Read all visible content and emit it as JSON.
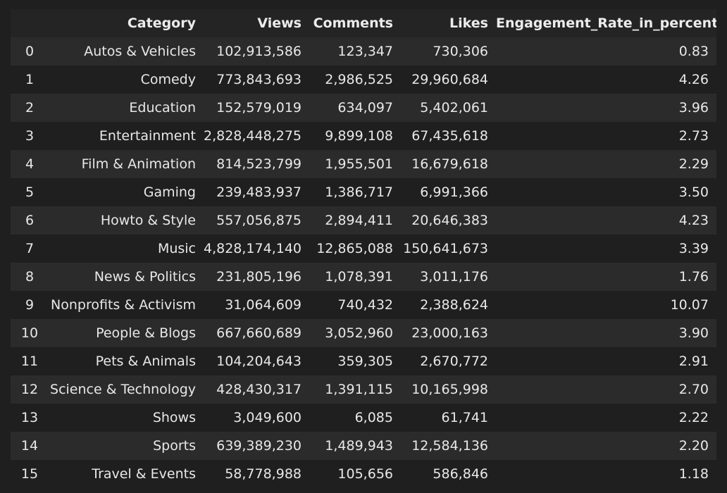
{
  "table": {
    "columns": [
      "",
      "Category",
      "Views",
      "Comments",
      "Likes",
      "Engagement_Rate_in_percent"
    ],
    "rows": [
      [
        "0",
        "Autos & Vehicles",
        "102,913,586",
        "123,347",
        "730,306",
        "0.83"
      ],
      [
        "1",
        "Comedy",
        "773,843,693",
        "2,986,525",
        "29,960,684",
        "4.26"
      ],
      [
        "2",
        "Education",
        "152,579,019",
        "634,097",
        "5,402,061",
        "3.96"
      ],
      [
        "3",
        "Entertainment",
        "2,828,448,275",
        "9,899,108",
        "67,435,618",
        "2.73"
      ],
      [
        "4",
        "Film & Animation",
        "814,523,799",
        "1,955,501",
        "16,679,618",
        "2.29"
      ],
      [
        "5",
        "Gaming",
        "239,483,937",
        "1,386,717",
        "6,991,366",
        "3.50"
      ],
      [
        "6",
        "Howto & Style",
        "557,056,875",
        "2,894,411",
        "20,646,383",
        "4.23"
      ],
      [
        "7",
        "Music",
        "4,828,174,140",
        "12,865,088",
        "150,641,673",
        "3.39"
      ],
      [
        "8",
        "News & Politics",
        "231,805,196",
        "1,078,391",
        "3,011,176",
        "1.76"
      ],
      [
        "9",
        "Nonprofits & Activism",
        "31,064,609",
        "740,432",
        "2,388,624",
        "10.07"
      ],
      [
        "10",
        "People & Blogs",
        "667,660,689",
        "3,052,960",
        "23,000,163",
        "3.90"
      ],
      [
        "11",
        "Pets & Animals",
        "104,204,643",
        "359,305",
        "2,670,772",
        "2.91"
      ],
      [
        "12",
        "Science & Technology",
        "428,430,317",
        "1,391,115",
        "10,165,998",
        "2.70"
      ],
      [
        "13",
        "Shows",
        "3,049,600",
        "6,085",
        "61,741",
        "2.22"
      ],
      [
        "14",
        "Sports",
        "639,389,230",
        "1,489,943",
        "12,584,136",
        "2.20"
      ],
      [
        "15",
        "Travel & Events",
        "58,778,988",
        "105,656",
        "586,846",
        "1.18"
      ]
    ]
  }
}
